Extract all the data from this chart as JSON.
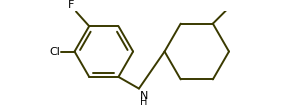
{
  "bg_color": "#ffffff",
  "line_color": "#3a3a00",
  "line_width": 1.4,
  "label_color": "#000000",
  "label_fontsize": 7.5,
  "figsize": [
    2.94,
    1.07
  ],
  "dpi": 100,
  "bcx": 0.285,
  "bcy": 0.5,
  "br": 0.155,
  "ccx": 0.72,
  "ccy": 0.5,
  "cr": 0.175,
  "F_label": "F",
  "Cl_label": "Cl",
  "NH_text": "NH",
  "H_text": "H"
}
